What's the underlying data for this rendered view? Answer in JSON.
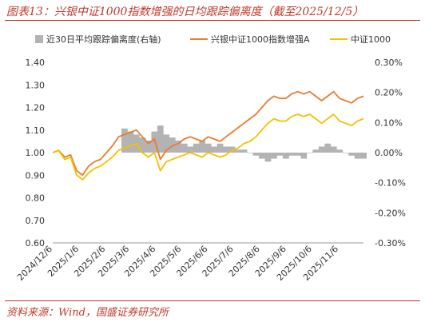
{
  "figure": {
    "title": "图表13：兴银中证1000指数增强的日均跟踪偏离度（截至2025/12/5）",
    "source": "资料来源：Wind，国盛证券研究所"
  },
  "chart_data": {
    "type": "line",
    "legend_position": "top",
    "grid": false,
    "x": [
      "2024/12/6",
      "2024/12/13",
      "2024/12/20",
      "2024/12/27",
      "2025/1/3",
      "2025/1/10",
      "2025/1/17",
      "2025/1/24",
      "2025/1/31",
      "2025/2/7",
      "2025/2/14",
      "2025/2/21",
      "2025/2/28",
      "2025/3/7",
      "2025/3/14",
      "2025/3/21",
      "2025/3/28",
      "2025/4/4",
      "2025/4/11",
      "2025/4/18",
      "2025/4/25",
      "2025/5/2",
      "2025/5/9",
      "2025/5/16",
      "2025/5/23",
      "2025/5/30",
      "2025/6/6",
      "2025/6/13",
      "2025/6/20",
      "2025/6/27",
      "2025/7/4",
      "2025/7/11",
      "2025/7/18",
      "2025/7/25",
      "2025/8/1",
      "2025/8/8",
      "2025/8/15",
      "2025/8/22",
      "2025/8/29",
      "2025/9/5",
      "2025/9/12",
      "2025/9/19",
      "2025/9/26",
      "2025/10/3",
      "2025/10/10",
      "2025/10/17",
      "2025/10/24",
      "2025/10/31",
      "2025/11/7",
      "2025/11/14",
      "2025/11/21",
      "2025/11/28",
      "2025/12/5"
    ],
    "x_tick_labels": [
      "2024/12/6",
      "2025/1/6",
      "2025/2/6",
      "2025/3/6",
      "2025/4/6",
      "2025/5/6",
      "2025/6/6",
      "2025/7/6",
      "2025/8/6",
      "2025/9/6",
      "2025/10/6",
      "2025/11/6"
    ],
    "y_left": {
      "ticks": [
        "0.60",
        "0.70",
        "0.80",
        "0.90",
        "1.00",
        "1.10",
        "1.20",
        "1.30",
        "1.40"
      ],
      "range": [
        0.6,
        1.4
      ]
    },
    "y_right": {
      "ticks": [
        "-0.30%",
        "-0.20%",
        "-0.10%",
        "0.00%",
        "0.10%",
        "0.20%",
        "0.30%"
      ],
      "range": [
        -0.3,
        0.3
      ],
      "unit": "%"
    },
    "series": [
      {
        "name": "近30日平均跟踪偏离度(右轴)",
        "kind": "area",
        "axis": "right",
        "color": "#b3b3b3",
        "values": [
          null,
          null,
          null,
          null,
          null,
          null,
          null,
          null,
          null,
          null,
          null,
          null,
          0.08,
          0.07,
          0.06,
          0.05,
          0.04,
          0.07,
          0.09,
          0.06,
          0.05,
          0.04,
          0.03,
          0.02,
          0.03,
          0.04,
          0.03,
          0.02,
          0.03,
          0.02,
          0.02,
          0.01,
          0.01,
          0.0,
          -0.01,
          -0.02,
          -0.03,
          -0.02,
          -0.01,
          -0.02,
          -0.01,
          -0.01,
          -0.02,
          0.0,
          0.01,
          0.02,
          0.03,
          0.02,
          0.01,
          0.0,
          -0.01,
          -0.02,
          -0.02
        ]
      },
      {
        "name": "兴银中证1000指数增强A",
        "kind": "line",
        "axis": "left",
        "color": "#e97b2e",
        "values": [
          1.0,
          1.01,
          0.98,
          0.99,
          0.92,
          0.9,
          0.94,
          0.96,
          0.97,
          1.0,
          1.03,
          1.07,
          1.08,
          1.09,
          1.1,
          1.07,
          1.04,
          1.06,
          0.97,
          1.01,
          1.03,
          1.04,
          1.06,
          1.07,
          1.06,
          1.05,
          1.07,
          1.06,
          1.05,
          1.07,
          1.09,
          1.11,
          1.13,
          1.15,
          1.17,
          1.2,
          1.23,
          1.25,
          1.24,
          1.24,
          1.26,
          1.27,
          1.26,
          1.27,
          1.25,
          1.23,
          1.25,
          1.27,
          1.24,
          1.23,
          1.22,
          1.24,
          1.25
        ]
      },
      {
        "name": "中证1000",
        "kind": "line",
        "axis": "left",
        "color": "#f2c100",
        "values": [
          1.0,
          1.01,
          0.97,
          0.98,
          0.9,
          0.88,
          0.91,
          0.93,
          0.94,
          0.96,
          0.98,
          1.01,
          1.02,
          1.03,
          1.04,
          1.0,
          0.98,
          1.0,
          0.92,
          0.96,
          0.97,
          0.98,
          0.99,
          1.0,
          0.99,
          0.98,
          1.0,
          0.99,
          0.98,
          0.99,
          1.01,
          1.02,
          1.04,
          1.05,
          1.07,
          1.1,
          1.13,
          1.15,
          1.14,
          1.14,
          1.16,
          1.17,
          1.16,
          1.17,
          1.15,
          1.13,
          1.15,
          1.17,
          1.14,
          1.13,
          1.12,
          1.14,
          1.15
        ]
      }
    ]
  }
}
